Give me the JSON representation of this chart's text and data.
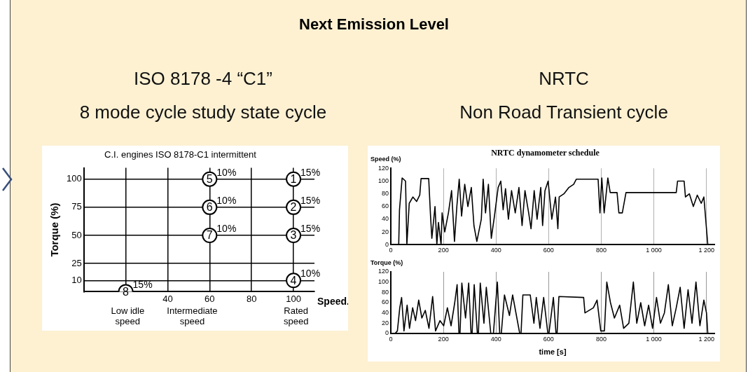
{
  "chart_data": [
    {
      "type": "other",
      "title": "Next Emission Level"
    },
    {
      "type": "scatter",
      "title": "ISO 8178 -4 “C1”\n8 mode cycle study state cycle",
      "subtitle": "C.I. engines ISO 8178-C1 intermittent",
      "xlabel": "Speed.",
      "ylabel": "Torque (%)",
      "series": [
        {
          "name": "1",
          "color": "#000000",
          "x": [
            100
          ],
          "values": [
            100
          ]
        },
        {
          "name": "2",
          "color": "#000000",
          "x": [
            100
          ],
          "values": [
            75
          ]
        },
        {
          "name": "3",
          "color": "#000000",
          "x": [
            100
          ],
          "values": [
            50
          ]
        },
        {
          "name": "4",
          "color": "#000000",
          "x": [
            100
          ],
          "values": [
            10
          ]
        },
        {
          "name": "5",
          "color": "#000000",
          "x": [
            60
          ],
          "values": [
            100
          ]
        },
        {
          "name": "6",
          "color": "#000000",
          "x": [
            60
          ],
          "values": [
            75
          ]
        },
        {
          "name": "7",
          "color": "#000000",
          "x": [
            60
          ],
          "values": [
            50
          ]
        },
        {
          "name": "8",
          "color": "#000000",
          "x": [
            20
          ],
          "values": [
            0
          ]
        }
      ],
      "marker": "circle",
      "xlim": [
        0,
        110
      ],
      "xticks": [
        {
          "value": 20,
          "label": null
        },
        40,
        60,
        80,
        100
      ],
      "ylim": [
        0,
        110
      ],
      "yticks": [
        10,
        25,
        50,
        75,
        100
      ],
      "grid": true,
      "annotations": [
        {
          "text": "15%",
          "x": 100,
          "y": 100
        },
        {
          "text": "15%",
          "x": 100,
          "y": 75
        },
        {
          "text": "15%",
          "x": 100,
          "y": 50
        },
        {
          "text": "10%",
          "x": 100,
          "y": 10
        },
        {
          "text": "10%",
          "x": 60,
          "y": 100
        },
        {
          "text": "10%",
          "x": 60,
          "y": 75
        },
        {
          "text": "10%",
          "x": 60,
          "y": 50
        },
        {
          "text": "15%",
          "x": 20,
          "y": 0
        },
        "Low idle speed",
        "Intermediate speed",
        "Rated speed"
      ]
    },
    {
      "type": "line",
      "title": "NRTC\nNon Road Transient cycle",
      "subtitle": "NRTC dynamometer schedule",
      "ylabel": "Speed (%)",
      "marker": "none",
      "grid": "x",
      "xlim": [
        0,
        1230
      ],
      "xticks": [
        0,
        200,
        400,
        600,
        800,
        {
          "value": 1000,
          "label": "1 000"
        },
        {
          "value": 1200,
          "label": "1 200"
        }
      ],
      "ylim": [
        0,
        120
      ],
      "yticks": [
        0,
        20,
        40,
        60,
        80,
        100,
        120
      ],
      "series": [
        {
          "color": "#000000",
          "x": [
            0,
            30,
            33,
            43,
            56,
            61,
            70,
            84,
            98,
            110,
            115,
            144,
            151,
            156,
            168,
            175,
            181,
            191,
            195,
            205,
            219,
            231,
            242,
            251,
            260,
            269,
            281,
            293,
            306,
            316,
            327,
            344,
            351,
            360,
            371,
            382,
            394,
            408,
            418,
            427,
            436,
            447,
            459,
            473,
            487,
            499,
            510,
            524,
            533,
            545,
            556,
            570,
            577,
            586,
            598,
            612,
            626,
            635,
            640,
            658,
            677,
            695,
            705,
            788,
            795,
            802,
            811,
            825,
            834,
            860,
            867,
            880,
            894,
            905,
            1000,
            1085,
            1090,
            1115,
            1120,
            1135,
            1150,
            1165,
            1180,
            1190,
            1205,
            1210
          ],
          "values": [
            0,
            0,
            55,
            105,
            100,
            0,
            65,
            75,
            68,
            78,
            104,
            104,
            45,
            10,
            60,
            0,
            35,
            0,
            50,
            20,
            50,
            85,
            5,
            60,
            103,
            45,
            95,
            60,
            90,
            30,
            5,
            40,
            103,
            50,
            95,
            10,
            45,
            90,
            100,
            55,
            88,
            40,
            85,
            50,
            90,
            30,
            85,
            50,
            25,
            85,
            40,
            90,
            30,
            85,
            100,
            40,
            75,
            25,
            75,
            80,
            90,
            95,
            103,
            103,
            50,
            105,
            50,
            105,
            82,
            82,
            50,
            50,
            82,
            82,
            82,
            82,
            100,
            100,
            75,
            80,
            60,
            78,
            65,
            75,
            0,
            0
          ]
        }
      ]
    },
    {
      "type": "line",
      "ylabel": "Torque (%)",
      "xlabel": "time [s]",
      "marker": "none",
      "grid": "x",
      "xlim": [
        0,
        1230
      ],
      "xticks": [
        0,
        200,
        400,
        600,
        800,
        {
          "value": 1000,
          "label": "1 000"
        },
        {
          "value": 1200,
          "label": "1 200"
        }
      ],
      "ylim": [
        0,
        120
      ],
      "yticks": [
        0,
        20,
        40,
        60,
        80,
        100,
        120
      ],
      "series": [
        {
          "color": "#000000",
          "x": [
            0,
            16,
            25,
            34,
            41,
            50,
            62,
            71,
            83,
            94,
            106,
            118,
            131,
            145,
            159,
            170,
            187,
            201,
            215,
            229,
            243,
            252,
            259,
            263,
            270,
            284,
            296,
            305,
            309,
            317,
            329,
            333,
            340,
            354,
            363,
            380,
            390,
            405,
            414,
            420,
            432,
            451,
            463,
            490,
            495,
            502,
            530,
            544,
            553,
            567,
            581,
            597,
            601,
            618,
            628,
            632,
            639,
            733,
            738,
            770,
            784,
            798,
            812,
            821,
            835,
            850,
            870,
            885,
            905,
            922,
            935,
            950,
            965,
            980,
            995,
            1010,
            1025,
            1040,
            1055,
            1070,
            1085,
            1100,
            1115,
            1130,
            1145,
            1160,
            1175,
            1190,
            1200,
            1205
          ],
          "values": [
            0,
            0,
            5,
            50,
            70,
            5,
            55,
            10,
            50,
            25,
            65,
            30,
            45,
            10,
            72,
            5,
            25,
            15,
            50,
            15,
            60,
            95,
            0,
            0,
            98,
            30,
            98,
            0,
            0,
            95,
            0,
            0,
            98,
            20,
            90,
            0,
            0,
            100,
            0,
            0,
            75,
            35,
            75,
            0,
            0,
            75,
            75,
            20,
            70,
            10,
            70,
            0,
            0,
            70,
            0,
            0,
            72,
            70,
            40,
            50,
            65,
            5,
            5,
            100,
            60,
            30,
            55,
            10,
            20,
            100,
            20,
            60,
            15,
            55,
            10,
            70,
            20,
            40,
            95,
            15,
            50,
            90,
            10,
            85,
            20,
            100,
            15,
            65,
            40,
            0
          ]
        }
      ]
    }
  ]
}
